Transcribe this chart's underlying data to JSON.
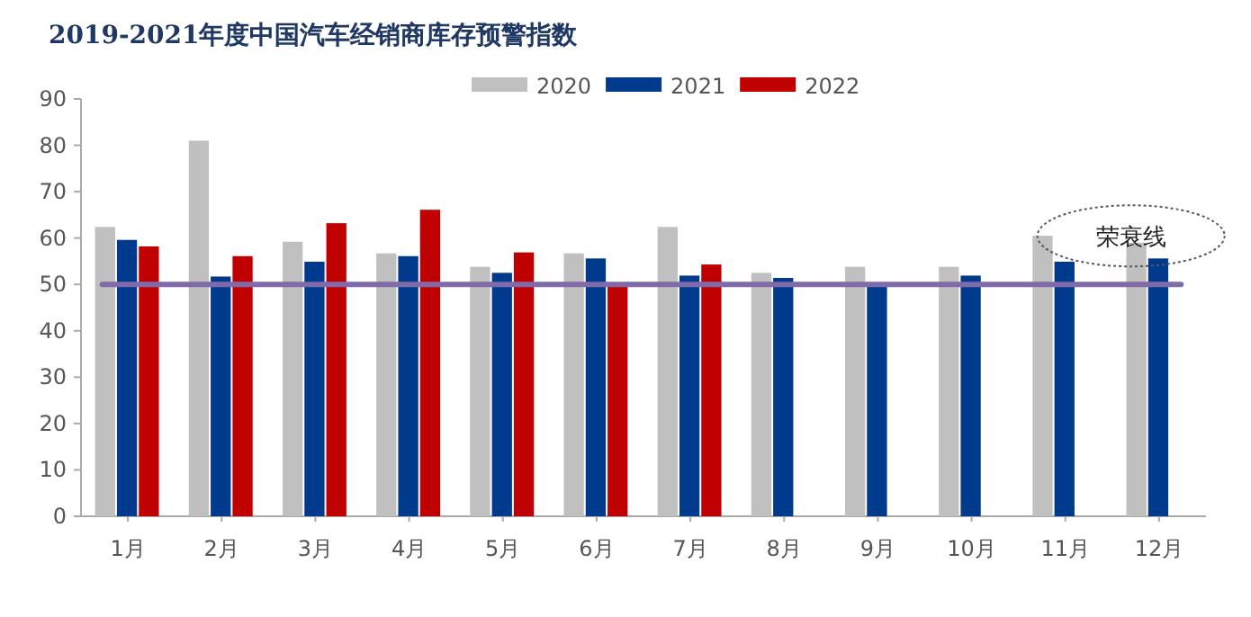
{
  "chart_data": {
    "type": "bar",
    "title": "2019-2021年度中国汽车经销商库存预警指数",
    "categories": [
      "1月",
      "2月",
      "3月",
      "4月",
      "5月",
      "6月",
      "7月",
      "8月",
      "9月",
      "10月",
      "11月",
      "12月"
    ],
    "series": [
      {
        "name": "2020",
        "color": "#c0c0c0",
        "values": [
          62.4,
          81.0,
          59.2,
          56.7,
          53.8,
          56.7,
          62.4,
          52.5,
          53.8,
          53.8,
          60.5,
          59.0
        ]
      },
      {
        "name": "2021",
        "color": "#003a8c",
        "values": [
          59.6,
          51.7,
          54.9,
          56.1,
          52.5,
          55.6,
          51.9,
          51.4,
          49.9,
          51.9,
          54.9,
          55.6
        ]
      },
      {
        "name": "2022",
        "color": "#c00000",
        "values": [
          58.2,
          56.1,
          63.2,
          66.1,
          56.9,
          49.8,
          54.3,
          null,
          null,
          null,
          null,
          null
        ]
      }
    ],
    "ylim": [
      0,
      90
    ],
    "yticks": [
      0,
      10,
      20,
      30,
      40,
      50,
      60,
      70,
      80,
      90
    ],
    "ref_lines": [
      {
        "axis": "y",
        "value": 50,
        "label": "荣衰线",
        "color": "#7f6aaa"
      }
    ],
    "legend": "top right",
    "grid": false
  }
}
